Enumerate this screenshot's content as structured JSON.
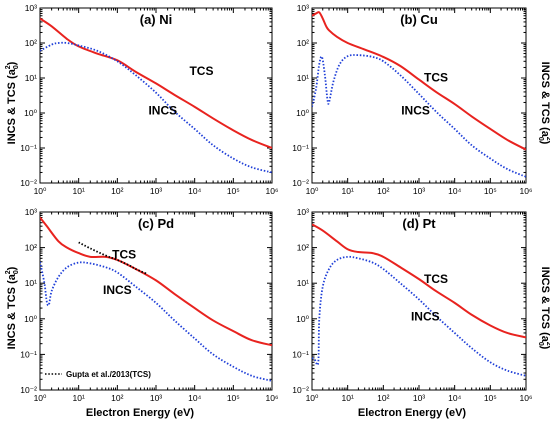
{
  "figure": {
    "ylabel": "INCS & TCS (a",
    "ylabel_sub": "0",
    "ylabel_sup": "2",
    "ylabel_close": ")",
    "xlabel": "Electron Energy (eV)"
  },
  "colors": {
    "tcs": "#e8231f",
    "incs": "#1f3fd8",
    "ref": "#000000"
  },
  "chart_data": [
    {
      "type": "line",
      "title": "(a) Ni",
      "xscale": "log",
      "yscale": "log",
      "xlim": [
        1,
        1000000
      ],
      "ylim": [
        0.01,
        1000
      ],
      "x_ticks": [
        "10⁰",
        "10¹",
        "10²",
        "10³",
        "10⁴",
        "10⁵",
        "10⁶"
      ],
      "y_ticks": [
        "10⁻²",
        "10⁻¹",
        "10⁰",
        "10¹",
        "10²",
        "10³"
      ],
      "series": [
        {
          "name": "TCS",
          "style": "solid",
          "color": "#e8231f",
          "points": [
            [
              1,
              500
            ],
            [
              2,
              300
            ],
            [
              5,
              130
            ],
            [
              10,
              80
            ],
            [
              30,
              50
            ],
            [
              100,
              32
            ],
            [
              300,
              15
            ],
            [
              1000,
              7
            ],
            [
              3000,
              3.3
            ],
            [
              10000,
              1.5
            ],
            [
              30000,
              0.7
            ],
            [
              100000,
              0.32
            ],
            [
              300000,
              0.17
            ],
            [
              1000000,
              0.1
            ]
          ]
        },
        {
          "name": "INCS",
          "style": "dotted",
          "color": "#1f3fd8",
          "points": [
            [
              1,
              60
            ],
            [
              2,
              90
            ],
            [
              3,
              100
            ],
            [
              5,
              100
            ],
            [
              10,
              85
            ],
            [
              30,
              60
            ],
            [
              100,
              30
            ],
            [
              300,
              12
            ],
            [
              1000,
              3.8
            ],
            [
              3000,
              1.1
            ],
            [
              10000,
              0.35
            ],
            [
              30000,
              0.12
            ],
            [
              100000,
              0.05
            ],
            [
              300000,
              0.028
            ],
            [
              1000000,
              0.02
            ]
          ]
        }
      ],
      "annotations": [
        {
          "text": "TCS",
          "x": 15000,
          "y": 12
        },
        {
          "text": "INCS",
          "x": 1500,
          "y": 0.9
        }
      ]
    },
    {
      "type": "line",
      "title": "(b) Cu",
      "xscale": "log",
      "yscale": "log",
      "xlim": [
        1,
        1000000
      ],
      "ylim": [
        0.01,
        1000
      ],
      "x_ticks": [
        "10⁰",
        "10¹",
        "10²",
        "10³",
        "10⁴",
        "10⁵",
        "10⁶"
      ],
      "y_ticks": [
        "10⁻²",
        "10⁻¹",
        "10⁰",
        "10¹",
        "10²",
        "10³"
      ],
      "series": [
        {
          "name": "TCS",
          "style": "solid",
          "color": "#e8231f",
          "points": [
            [
              1,
              600
            ],
            [
              1.3,
              700
            ],
            [
              1.6,
              750
            ],
            [
              2,
              500
            ],
            [
              2.5,
              300
            ],
            [
              3,
              230
            ],
            [
              5,
              150
            ],
            [
              10,
              100
            ],
            [
              30,
              65
            ],
            [
              100,
              40
            ],
            [
              300,
              22
            ],
            [
              1000,
              9
            ],
            [
              3000,
              4
            ],
            [
              10000,
              1.8
            ],
            [
              30000,
              0.8
            ],
            [
              100000,
              0.35
            ],
            [
              300000,
              0.17
            ],
            [
              1000000,
              0.09
            ]
          ]
        },
        {
          "name": "INCS",
          "style": "dotted",
          "color": "#1f3fd8",
          "points": [
            [
              1,
              1.5
            ],
            [
              1.3,
              5
            ],
            [
              1.6,
              25
            ],
            [
              1.9,
              40
            ],
            [
              2.3,
              12
            ],
            [
              2.7,
              2.5
            ],
            [
              3,
              2
            ],
            [
              4,
              8
            ],
            [
              6,
              25
            ],
            [
              10,
              42
            ],
            [
              20,
              45
            ],
            [
              50,
              40
            ],
            [
              100,
              30
            ],
            [
              300,
              12
            ],
            [
              1000,
              3.5
            ],
            [
              3000,
              1.1
            ],
            [
              10000,
              0.35
            ],
            [
              30000,
              0.12
            ],
            [
              100000,
              0.05
            ],
            [
              300000,
              0.025
            ],
            [
              1000000,
              0.015
            ]
          ]
        }
      ],
      "annotations": [
        {
          "text": "TCS",
          "x": 3000,
          "y": 8
        },
        {
          "text": "INCS",
          "x": 800,
          "y": 0.9
        }
      ]
    },
    {
      "type": "line",
      "title": "(c) Pd",
      "xscale": "log",
      "yscale": "log",
      "xlim": [
        1,
        1000000
      ],
      "ylim": [
        0.01,
        1000
      ],
      "x_ticks": [
        "10⁰",
        "10¹",
        "10²",
        "10³",
        "10⁴",
        "10⁵",
        "10⁶"
      ],
      "y_ticks": [
        "10⁻²",
        "10⁻¹",
        "10⁰",
        "10¹",
        "10²",
        "10³"
      ],
      "series": [
        {
          "name": "TCS",
          "style": "solid",
          "color": "#e8231f",
          "points": [
            [
              1,
              700
            ],
            [
              1.5,
              400
            ],
            [
              3,
              150
            ],
            [
              5,
              100
            ],
            [
              10,
              70
            ],
            [
              20,
              55
            ],
            [
              50,
              55
            ],
            [
              100,
              45
            ],
            [
              300,
              25
            ],
            [
              1000,
              12
            ],
            [
              3000,
              5
            ],
            [
              10000,
              2
            ],
            [
              30000,
              0.9
            ],
            [
              100000,
              0.45
            ],
            [
              300000,
              0.25
            ],
            [
              1000000,
              0.18
            ]
          ]
        },
        {
          "name": "INCS",
          "style": "dotted",
          "color": "#1f3fd8",
          "points": [
            [
              1,
              40
            ],
            [
              1.3,
              10
            ],
            [
              1.5,
              3
            ],
            [
              1.7,
              2.5
            ],
            [
              2,
              6
            ],
            [
              3,
              15
            ],
            [
              5,
              28
            ],
            [
              10,
              38
            ],
            [
              20,
              36
            ],
            [
              50,
              28
            ],
            [
              100,
              20
            ],
            [
              300,
              8
            ],
            [
              1000,
              2.8
            ],
            [
              3000,
              0.9
            ],
            [
              10000,
              0.28
            ],
            [
              30000,
              0.1
            ],
            [
              100000,
              0.045
            ],
            [
              300000,
              0.025
            ],
            [
              1000000,
              0.018
            ]
          ]
        },
        {
          "name": "Gupta et al./2013(TCS)",
          "style": "dotted",
          "color": "#000000",
          "points": [
            [
              10,
              140
            ],
            [
              20,
              95
            ],
            [
              50,
              60
            ],
            [
              100,
              45
            ],
            [
              200,
              32
            ],
            [
              300,
              25
            ],
            [
              600,
              18
            ]
          ]
        }
      ],
      "annotations": [
        {
          "text": "TCS",
          "x": 150,
          "y": 50
        },
        {
          "text": "INCS",
          "x": 100,
          "y": 5
        }
      ],
      "legend": {
        "position": "bottom-left",
        "entries": [
          "Gupta et al./2013(TCS)"
        ]
      }
    },
    {
      "type": "line",
      "title": "(d) Pt",
      "xscale": "log",
      "yscale": "log",
      "xlim": [
        1,
        1000000
      ],
      "ylim": [
        0.01,
        1000
      ],
      "x_ticks": [
        "10⁰",
        "10¹",
        "10²",
        "10³",
        "10⁴",
        "10⁵",
        "10⁶"
      ],
      "y_ticks": [
        "10⁻²",
        "10⁻¹",
        "10⁰",
        "10¹",
        "10²",
        "10³"
      ],
      "series": [
        {
          "name": "TCS",
          "style": "solid",
          "color": "#e8231f",
          "points": [
            [
              1,
              450
            ],
            [
              2,
              300
            ],
            [
              5,
              150
            ],
            [
              10,
              90
            ],
            [
              20,
              75
            ],
            [
              50,
              70
            ],
            [
              100,
              55
            ],
            [
              300,
              28
            ],
            [
              1000,
              13
            ],
            [
              3000,
              6
            ],
            [
              10000,
              2.8
            ],
            [
              30000,
              1.3
            ],
            [
              100000,
              0.65
            ],
            [
              300000,
              0.4
            ],
            [
              1000000,
              0.3
            ]
          ]
        },
        {
          "name": "INCS",
          "style": "dotted",
          "color": "#1f3fd8",
          "points": [
            [
              1,
              0.08
            ],
            [
              1.2,
              0.07
            ],
            [
              1.5,
              0.06
            ],
            [
              1.6,
              1
            ],
            [
              2,
              8
            ],
            [
              3,
              25
            ],
            [
              5,
              45
            ],
            [
              10,
              55
            ],
            [
              20,
              50
            ],
            [
              50,
              38
            ],
            [
              100,
              25
            ],
            [
              300,
              10
            ],
            [
              1000,
              3.5
            ],
            [
              3000,
              1.2
            ],
            [
              10000,
              0.4
            ],
            [
              30000,
              0.15
            ],
            [
              100000,
              0.06
            ],
            [
              300000,
              0.035
            ],
            [
              1000000,
              0.025
            ]
          ]
        }
      ],
      "annotations": [
        {
          "text": "TCS",
          "x": 3000,
          "y": 10
        },
        {
          "text": "INCS",
          "x": 1500,
          "y": 0.9
        }
      ]
    }
  ]
}
